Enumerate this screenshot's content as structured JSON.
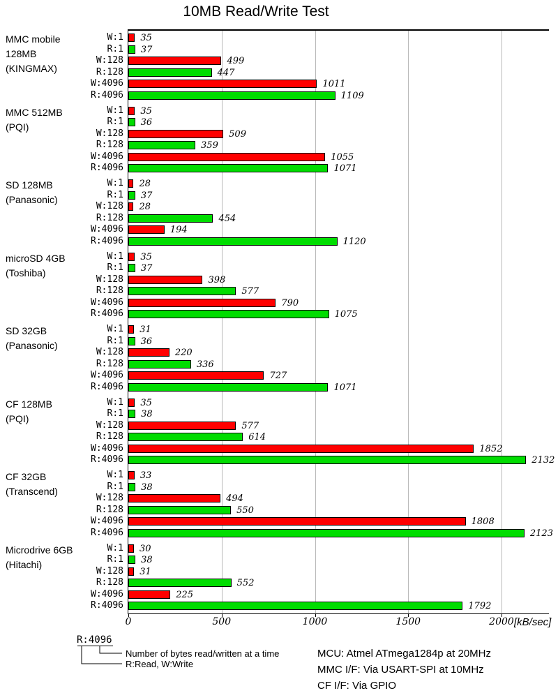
{
  "title": "10MB Read/Write Test",
  "chart_data": {
    "type": "bar",
    "orientation": "horizontal",
    "title": "10MB Read/Write Test",
    "unit_label": "[kB/sec]",
    "x_ticks": [
      0,
      500,
      1000,
      1500,
      2000
    ],
    "x_max": 2250,
    "grid": true,
    "bar_labels": [
      "W:1",
      "R:1",
      "W:128",
      "R:128",
      "W:4096",
      "R:4096"
    ],
    "series_colors": {
      "write": "#ff0000",
      "read": "#00dd00"
    },
    "groups": [
      {
        "label_lines": [
          "MMC mobile",
          "128MB",
          "(KINGMAX)"
        ],
        "values": [
          35,
          37,
          499,
          447,
          1011,
          1109
        ]
      },
      {
        "label_lines": [
          "MMC 512MB",
          "(PQI)"
        ],
        "values": [
          35,
          36,
          509,
          359,
          1055,
          1071
        ]
      },
      {
        "label_lines": [
          "SD 128MB",
          "(Panasonic)"
        ],
        "values": [
          28,
          37,
          28,
          454,
          194,
          1120
        ]
      },
      {
        "label_lines": [
          "microSD 4GB",
          "(Toshiba)"
        ],
        "values": [
          35,
          37,
          398,
          577,
          790,
          1075
        ]
      },
      {
        "label_lines": [
          "SD 32GB",
          "(Panasonic)"
        ],
        "values": [
          31,
          36,
          220,
          336,
          727,
          1071
        ]
      },
      {
        "label_lines": [
          "CF 128MB",
          "(PQI)"
        ],
        "values": [
          35,
          38,
          577,
          614,
          1852,
          2132
        ]
      },
      {
        "label_lines": [
          "CF 32GB",
          "(Transcend)"
        ],
        "values": [
          33,
          38,
          494,
          550,
          1808,
          2123
        ]
      },
      {
        "label_lines": [
          "Microdrive 6GB",
          "(Hitachi)"
        ],
        "values": [
          30,
          38,
          31,
          552,
          225,
          1792
        ]
      }
    ]
  },
  "legend": {
    "example_label": "R:4096",
    "note_bytes": "Number of bytes read/written at a time",
    "note_rw": "R:Read, W:Write"
  },
  "footer": {
    "lines": [
      "MCU: Atmel ATmega1284p at 20MHz",
      "MMC I/F: Via USART-SPI at 10MHz",
      "CF I/F: Via GPIO"
    ]
  }
}
